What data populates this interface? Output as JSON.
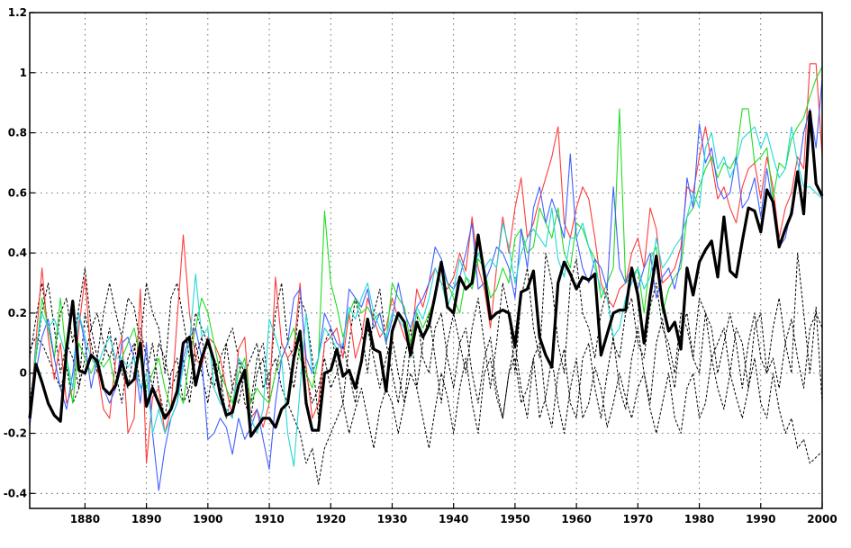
{
  "chart_data": {
    "type": "line",
    "title": "",
    "xlabel": "",
    "ylabel": "",
    "xlim": [
      1871,
      2000
    ],
    "ylim": [
      -0.45,
      1.2
    ],
    "grid": true,
    "legend": "none",
    "x_ticks": [
      1880,
      1890,
      1900,
      1910,
      1920,
      1930,
      1940,
      1950,
      1960,
      1970,
      1980,
      1990,
      2000
    ],
    "x_tick_labels": [
      "1880",
      "1890",
      "1900",
      "1910",
      "1920",
      "1930",
      "1940",
      "1950",
      "1960",
      "1970",
      "1980",
      "1990",
      "2000"
    ],
    "y_ticks": [
      -0.4,
      -0.2,
      0,
      0.2,
      0.4,
      0.6,
      0.8,
      1,
      1.2
    ],
    "y_tick_labels": [
      "-0.4",
      "-0.2",
      "0",
      "0.2",
      "0.4",
      "0.6",
      "0.8",
      "1",
      "1.2"
    ],
    "x": [
      1871,
      1872,
      1873,
      1874,
      1875,
      1876,
      1877,
      1878,
      1879,
      1880,
      1881,
      1882,
      1883,
      1884,
      1885,
      1886,
      1887,
      1888,
      1889,
      1890,
      1891,
      1892,
      1893,
      1894,
      1895,
      1896,
      1897,
      1898,
      1899,
      1900,
      1901,
      1902,
      1903,
      1904,
      1905,
      1906,
      1907,
      1908,
      1909,
      1910,
      1911,
      1912,
      1913,
      1914,
      1915,
      1916,
      1917,
      1918,
      1919,
      1920,
      1921,
      1922,
      1923,
      1924,
      1925,
      1926,
      1927,
      1928,
      1929,
      1930,
      1931,
      1932,
      1933,
      1934,
      1935,
      1936,
      1937,
      1938,
      1939,
      1940,
      1941,
      1942,
      1943,
      1944,
      1945,
      1946,
      1947,
      1948,
      1949,
      1950,
      1951,
      1952,
      1953,
      1954,
      1955,
      1956,
      1957,
      1958,
      1959,
      1960,
      1961,
      1962,
      1963,
      1964,
      1965,
      1966,
      1967,
      1968,
      1969,
      1970,
      1971,
      1972,
      1973,
      1974,
      1975,
      1976,
      1977,
      1978,
      1979,
      1980,
      1981,
      1982,
      1983,
      1984,
      1985,
      1986,
      1987,
      1988,
      1989,
      1990,
      1991,
      1992,
      1993,
      1994,
      1995,
      1996,
      1997,
      1998,
      1999,
      2000
    ],
    "series": [
      {
        "color": "#000000",
        "style": "solid-thick",
        "values": [
          -0.15,
          0.03,
          -0.03,
          -0.1,
          -0.14,
          -0.16,
          0.08,
          0.24,
          0.01,
          0.0,
          0.06,
          0.04,
          -0.05,
          -0.07,
          -0.04,
          0.04,
          -0.04,
          -0.02,
          0.1,
          -0.11,
          -0.05,
          -0.1,
          -0.15,
          -0.12,
          -0.06,
          0.1,
          0.12,
          -0.04,
          0.05,
          0.11,
          0.04,
          -0.07,
          -0.14,
          -0.13,
          -0.04,
          0.01,
          -0.21,
          -0.18,
          -0.15,
          -0.15,
          -0.18,
          -0.12,
          -0.1,
          0.05,
          0.14,
          -0.1,
          -0.19,
          -0.19,
          0.0,
          0.01,
          0.08,
          -0.01,
          0.01,
          -0.05,
          0.04,
          0.18,
          0.08,
          0.07,
          -0.06,
          0.14,
          0.2,
          0.17,
          0.06,
          0.17,
          0.12,
          0.16,
          0.26,
          0.37,
          0.22,
          0.2,
          0.32,
          0.28,
          0.3,
          0.46,
          0.33,
          0.18,
          0.2,
          0.21,
          0.2,
          0.09,
          0.27,
          0.28,
          0.34,
          0.12,
          0.06,
          0.02,
          0.3,
          0.37,
          0.33,
          0.28,
          0.32,
          0.31,
          0.33,
          0.06,
          0.13,
          0.2,
          0.21,
          0.21,
          0.35,
          0.26,
          0.1,
          0.26,
          0.39,
          0.23,
          0.14,
          0.17,
          0.08,
          0.35,
          0.26,
          0.37,
          0.41,
          0.44,
          0.32,
          0.52,
          0.34,
          0.32,
          0.44,
          0.55,
          0.54,
          0.47,
          0.61,
          0.57,
          0.42,
          0.48,
          0.53,
          0.67,
          0.53,
          0.87,
          0.63,
          0.59
        ]
      },
      {
        "color": "#ff3b3b",
        "style": "solid",
        "values": [
          -0.15,
          0.1,
          0.35,
          0.12,
          -0.02,
          0.1,
          -0.1,
          -0.05,
          0.15,
          0.32,
          0.05,
          0.02,
          -0.12,
          -0.15,
          0.05,
          0.12,
          -0.2,
          -0.15,
          0.28,
          -0.3,
          -0.08,
          -0.05,
          -0.2,
          -0.12,
          0.18,
          0.46,
          0.2,
          0.05,
          0.02,
          0.12,
          0.1,
          0.05,
          -0.05,
          -0.15,
          0.08,
          0.12,
          -0.15,
          -0.12,
          -0.18,
          -0.1,
          0.32,
          0.1,
          0.05,
          0.08,
          0.3,
          0.02,
          -0.15,
          -0.1,
          0.1,
          0.12,
          0.15,
          0.05,
          0.2,
          0.05,
          0.12,
          0.25,
          0.18,
          0.12,
          0.15,
          0.25,
          0.18,
          0.12,
          0.08,
          0.28,
          0.22,
          0.3,
          0.35,
          0.3,
          0.28,
          0.32,
          0.4,
          0.34,
          0.52,
          0.35,
          0.28,
          0.15,
          0.35,
          0.52,
          0.4,
          0.55,
          0.65,
          0.45,
          0.5,
          0.58,
          0.65,
          0.72,
          0.82,
          0.5,
          0.45,
          0.55,
          0.62,
          0.58,
          0.45,
          0.3,
          0.25,
          0.22,
          0.28,
          0.3,
          0.4,
          0.45,
          0.35,
          0.55,
          0.48,
          0.3,
          0.32,
          0.35,
          0.42,
          0.62,
          0.6,
          0.72,
          0.82,
          0.7,
          0.58,
          0.62,
          0.55,
          0.5,
          0.62,
          0.68,
          0.7,
          0.58,
          0.72,
          0.62,
          0.45,
          0.55,
          0.6,
          0.72,
          0.68,
          1.03,
          1.03,
          0.72
        ]
      },
      {
        "color": "#22dd22",
        "style": "solid",
        "values": [
          -0.15,
          0.05,
          0.25,
          0.15,
          0.05,
          0.25,
          0.05,
          -0.1,
          0.1,
          0.05,
          0.0,
          0.05,
          0.02,
          0.05,
          -0.05,
          0.05,
          0.1,
          0.15,
          0.05,
          -0.05,
          0.0,
          0.05,
          -0.05,
          -0.12,
          -0.05,
          -0.1,
          0.05,
          0.15,
          0.25,
          0.2,
          0.1,
          0.0,
          -0.05,
          -0.1,
          0.0,
          0.05,
          -0.1,
          -0.05,
          -0.08,
          -0.1,
          0.0,
          0.05,
          0.1,
          0.15,
          0.05,
          0.0,
          -0.05,
          0.05,
          0.54,
          0.3,
          0.22,
          0.12,
          0.2,
          0.25,
          0.2,
          0.22,
          0.18,
          0.2,
          0.1,
          0.3,
          0.25,
          0.22,
          0.1,
          0.2,
          0.15,
          0.2,
          0.25,
          0.35,
          0.3,
          0.25,
          0.2,
          0.32,
          0.28,
          0.38,
          0.35,
          0.25,
          0.28,
          0.35,
          0.3,
          0.45,
          0.48,
          0.4,
          0.42,
          0.55,
          0.5,
          0.45,
          0.55,
          0.4,
          0.35,
          0.5,
          0.48,
          0.42,
          0.38,
          0.25,
          0.3,
          0.35,
          0.88,
          0.3,
          0.32,
          0.35,
          0.2,
          0.38,
          0.42,
          0.2,
          0.28,
          0.32,
          0.35,
          0.52,
          0.55,
          0.62,
          0.68,
          0.72,
          0.65,
          0.7,
          0.68,
          0.72,
          0.88,
          0.88,
          0.7,
          0.72,
          0.75,
          0.58,
          0.7,
          0.68,
          0.78,
          0.82,
          0.85,
          0.92,
          0.98,
          1.02
        ]
      },
      {
        "color": "#4060ff",
        "style": "solid",
        "values": [
          -0.18,
          0.0,
          0.12,
          0.18,
          0.05,
          -0.05,
          -0.12,
          0.0,
          0.2,
          0.1,
          -0.05,
          0.05,
          -0.05,
          -0.1,
          -0.05,
          0.1,
          0.12,
          0.05,
          -0.1,
          0.1,
          -0.2,
          -0.39,
          -0.25,
          -0.15,
          -0.1,
          0.05,
          0.12,
          0.15,
          0.05,
          -0.22,
          -0.2,
          -0.15,
          -0.18,
          -0.27,
          -0.15,
          -0.22,
          -0.18,
          -0.12,
          -0.22,
          -0.32,
          -0.1,
          0.05,
          0.1,
          0.25,
          0.28,
          0.05,
          0.0,
          0.05,
          0.2,
          0.15,
          0.1,
          0.08,
          0.28,
          0.25,
          0.22,
          0.28,
          0.15,
          0.2,
          0.1,
          0.18,
          0.3,
          0.2,
          0.15,
          0.22,
          0.25,
          0.3,
          0.42,
          0.38,
          0.3,
          0.28,
          0.32,
          0.4,
          0.5,
          0.28,
          0.3,
          0.35,
          0.42,
          0.4,
          0.35,
          0.25,
          0.48,
          0.35,
          0.55,
          0.62,
          0.5,
          0.58,
          0.52,
          0.45,
          0.73,
          0.45,
          0.35,
          0.3,
          0.38,
          0.35,
          0.28,
          0.62,
          0.35,
          0.3,
          0.35,
          0.28,
          0.35,
          0.4,
          0.25,
          0.32,
          0.35,
          0.28,
          0.38,
          0.65,
          0.55,
          0.83,
          0.7,
          0.75,
          0.62,
          0.58,
          0.6,
          0.72,
          0.55,
          0.58,
          0.65,
          0.52,
          0.68,
          0.55,
          0.42,
          0.45,
          0.55,
          0.65,
          0.8,
          0.88,
          0.75,
          0.98
        ]
      },
      {
        "color": "#22d8d8",
        "style": "solid",
        "values": [
          -0.15,
          0.08,
          0.2,
          0.15,
          0.18,
          0.12,
          0.05,
          -0.05,
          0.2,
          0.12,
          0.05,
          0.02,
          0.08,
          0.12,
          0.05,
          0.05,
          0.02,
          0.05,
          -0.05,
          0.0,
          -0.2,
          -0.12,
          -0.2,
          -0.15,
          -0.1,
          0.02,
          0.1,
          0.33,
          0.12,
          0.15,
          -0.05,
          -0.1,
          -0.12,
          -0.15,
          0.05,
          0.02,
          -0.15,
          -0.2,
          -0.12,
          0.18,
          0.12,
          0.05,
          -0.2,
          -0.31,
          -0.05,
          0.2,
          0.0,
          0.05,
          0.15,
          0.12,
          0.08,
          0.1,
          0.22,
          0.18,
          0.25,
          0.3,
          0.2,
          0.15,
          0.12,
          0.2,
          0.18,
          0.15,
          0.05,
          0.22,
          0.18,
          0.25,
          0.35,
          0.3,
          0.22,
          0.28,
          0.38,
          0.32,
          0.3,
          0.4,
          0.35,
          0.38,
          0.35,
          0.5,
          0.42,
          0.3,
          0.4,
          0.45,
          0.48,
          0.45,
          0.42,
          0.55,
          0.38,
          0.32,
          0.45,
          0.45,
          0.5,
          0.42,
          0.35,
          0.28,
          0.25,
          0.12,
          0.15,
          0.25,
          0.3,
          0.35,
          0.28,
          0.32,
          0.45,
          0.35,
          0.38,
          0.42,
          0.45,
          0.52,
          0.6,
          0.55,
          0.75,
          0.8,
          0.68,
          0.72,
          0.65,
          0.7,
          0.78,
          0.8,
          0.82,
          0.75,
          0.8,
          0.72,
          0.65,
          0.68,
          0.82,
          0.7,
          0.62,
          0.62,
          0.6,
          0.58
        ]
      },
      {
        "color": "#000000",
        "style": "dashed",
        "values": [
          0.05,
          0.18,
          0.3,
          0.15,
          0.05,
          0.2,
          0.25,
          0.1,
          0.22,
          0.35,
          0.15,
          0.05,
          0.2,
          0.3,
          0.2,
          0.12,
          0.25,
          0.22,
          0.1,
          0.3,
          0.2,
          0.15,
          0.0,
          0.25,
          0.3,
          0.18,
          0.05,
          0.2,
          0.15,
          0.1,
          0.05,
          -0.08,
          0.1,
          0.15,
          0.05,
          0.0,
          -0.1,
          0.05,
          0.1,
          -0.05,
          0.2,
          0.3,
          0.1,
          0.05,
          0.25,
          0.2,
          0.05,
          -0.15,
          0.1,
          0.15,
          0.02,
          -0.1,
          0.1,
          0.25,
          0.15,
          0.0,
          0.2,
          0.28,
          0.1,
          0.0,
          -0.1,
          0.05,
          0.15,
          -0.05,
          0.1,
          0.2,
          0.05,
          -0.1,
          0.1,
          0.2,
          0.1,
          0.0,
          0.15,
          0.25,
          0.1,
          -0.05,
          0.1,
          0.3,
          0.2,
          0.0,
          0.25,
          0.35,
          0.15,
          0.05,
          0.4,
          0.3,
          0.1,
          0.0,
          0.3,
          0.38,
          0.2,
          0.15,
          0.05,
          0.2,
          0.28,
          0.1,
          0.05,
          0.2,
          0.25,
          0.1,
          0.05,
          0.22,
          0.3,
          0.15,
          0.1,
          0.0,
          0.2,
          0.15,
          0.05,
          0.25,
          0.2,
          0.05,
          0.1,
          0.15,
          0.0,
          0.15,
          0.1,
          -0.05,
          0.15,
          0.2,
          0.0,
          0.05,
          -0.05,
          0.1,
          0.18,
          0.05,
          -0.05,
          0.15,
          0.2,
          0.15
        ]
      },
      {
        "color": "#000000",
        "style": "dashed",
        "values": [
          0.08,
          0.12,
          0.1,
          0.05,
          0.0,
          -0.05,
          0.02,
          -0.1,
          -0.05,
          0.05,
          0.15,
          0.2,
          0.1,
          0.05,
          0.12,
          0.0,
          -0.05,
          0.08,
          0.15,
          0.05,
          -0.05,
          0.1,
          0.05,
          -0.05,
          0.0,
          0.05,
          -0.1,
          0.05,
          0.12,
          0.0,
          -0.05,
          0.05,
          0.1,
          -0.05,
          -0.1,
          0.0,
          0.05,
          0.1,
          -0.05,
          0.0,
          0.05,
          -0.05,
          -0.1,
          -0.15,
          -0.2,
          -0.3,
          -0.25,
          -0.37,
          -0.25,
          -0.2,
          -0.15,
          -0.1,
          -0.2,
          -0.12,
          -0.05,
          -0.15,
          -0.25,
          -0.12,
          -0.05,
          -0.1,
          -0.2,
          -0.1,
          0.0,
          -0.05,
          -0.15,
          -0.25,
          -0.12,
          0.0,
          -0.08,
          -0.2,
          -0.05,
          0.05,
          -0.1,
          -0.2,
          0.0,
          0.05,
          -0.08,
          -0.15,
          0.0,
          0.05,
          -0.1,
          -0.05,
          0.05,
          -0.15,
          -0.08,
          0.05,
          -0.1,
          -0.2,
          -0.05,
          0.05,
          -0.15,
          -0.1,
          0.02,
          -0.05,
          -0.18,
          -0.1,
          0.0,
          -0.08,
          -0.15,
          -0.05,
          0.0,
          -0.12,
          -0.2,
          -0.1,
          0.0,
          -0.15,
          -0.2,
          -0.05,
          0.0,
          -0.15,
          -0.1,
          0.05,
          -0.05,
          -0.12,
          0.0,
          -0.08,
          -0.15,
          -0.05,
          0.05,
          -0.1,
          -0.15,
          0.0,
          -0.12,
          -0.2,
          -0.15,
          -0.25,
          -0.22,
          -0.3,
          -0.28,
          -0.26
        ]
      },
      {
        "color": "#000000",
        "style": "dashed",
        "values": [
          -0.1,
          0.05,
          0.2,
          0.3,
          0.15,
          0.0,
          0.1,
          0.05,
          -0.05,
          0.2,
          0.1,
          0.0,
          0.05,
          0.15,
          0.0,
          -0.1,
          0.05,
          0.1,
          -0.05,
          0.0,
          0.1,
          -0.05,
          -0.15,
          0.0,
          0.05,
          -0.1,
          -0.05,
          0.1,
          0.0,
          -0.1,
          0.05,
          0.0,
          -0.15,
          -0.05,
          0.05,
          -0.1,
          -0.15,
          0.0,
          0.05,
          -0.1,
          0.0,
          0.1,
          0.05,
          -0.05,
          0.1,
          0.0,
          -0.1,
          -0.05,
          0.05,
          -0.05,
          0.0,
          0.1,
          0.0,
          -0.1,
          0.05,
          0.15,
          0.05,
          -0.05,
          0.05,
          0.12,
          0.0,
          -0.1,
          0.1,
          0.2,
          0.05,
          0.0,
          0.15,
          0.2,
          0.05,
          -0.05,
          0.1,
          0.15,
          0.0,
          -0.1,
          0.05,
          0.12,
          -0.05,
          -0.15,
          0.0,
          0.1,
          -0.05,
          -0.15,
          0.05,
          0.1,
          -0.1,
          -0.18,
          0.0,
          0.08,
          -0.1,
          -0.15,
          0.05,
          0.1,
          -0.05,
          -0.15,
          0.0,
          0.12,
          -0.05,
          -0.12,
          0.05,
          0.15,
          0.0,
          -0.1,
          0.1,
          0.18,
          0.05,
          -0.05,
          0.15,
          0.2,
          0.05,
          0.0,
          0.2,
          0.15,
          0.0,
          0.1,
          0.2,
          0.1,
          -0.05,
          0.1,
          0.2,
          0.05,
          0.0,
          0.15,
          0.25,
          0.1,
          0.0,
          0.4,
          0.2,
          0.0,
          0.22,
          -0.1
        ]
      }
    ]
  }
}
